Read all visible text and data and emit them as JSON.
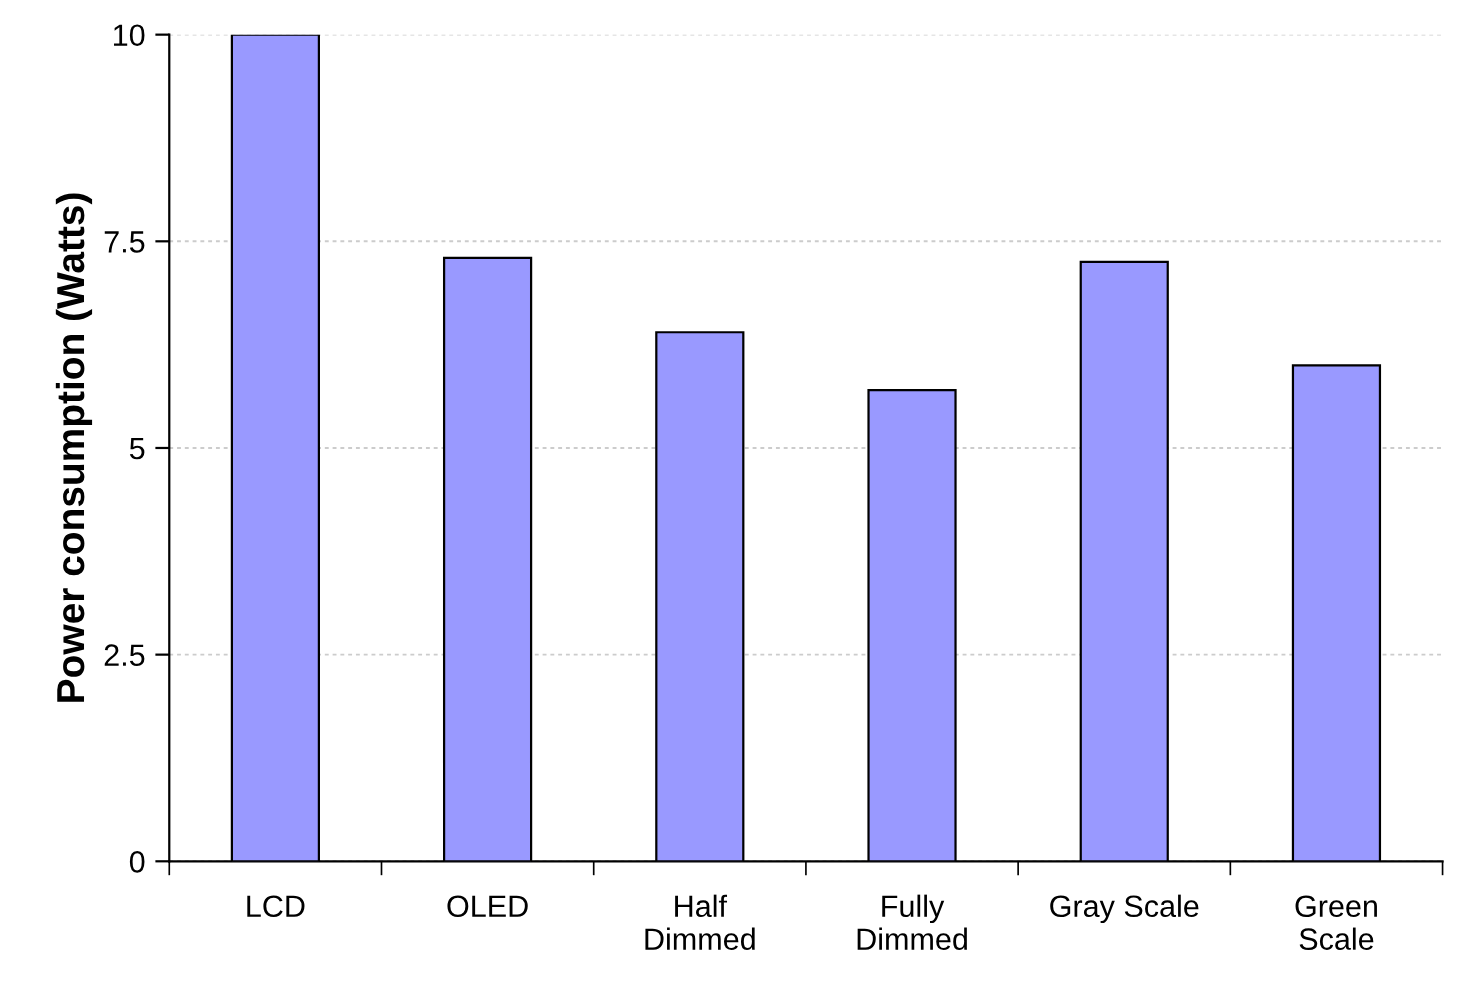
{
  "chart_data": {
    "type": "bar",
    "ylabel": "Power consumption (Watts)",
    "categories": [
      "LCD",
      "OLED",
      "Half\nDimmed",
      "Fully\nDimmed",
      "Gray Scale",
      "Green\nScale"
    ],
    "values": [
      10,
      7.3,
      6.4,
      5.7,
      7.25,
      6.0
    ],
    "color": "#9999ff",
    "ylim": [
      0,
      10
    ],
    "yticks": [
      0,
      2.5,
      5,
      7.5,
      10
    ],
    "grid": "y"
  }
}
